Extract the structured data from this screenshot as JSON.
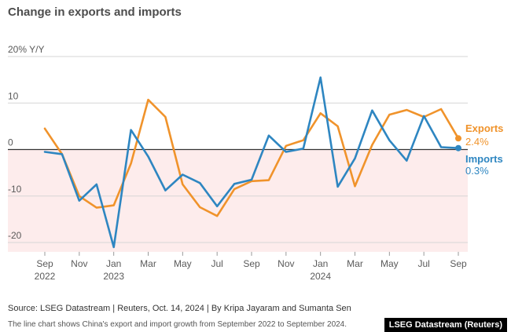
{
  "title": "Change in exports and imports",
  "source": "Source: LSEG Datastream | Reuters, Oct. 14, 2024 | By Kripa Jayaram and Sumanta Sen",
  "description": "The line chart shows China's export and import growth from September 2022 to September 2024.",
  "brand": "LSEG Datastream (Reuters)",
  "colors": {
    "exports": "#f0932b",
    "imports": "#2e86c1",
    "negative_band": "#fdecec"
  },
  "chart_data": {
    "type": "line",
    "title": "Change in exports and imports",
    "ylabel": "% Y/Y",
    "ylim": [
      -22,
      22
    ],
    "yticks": [
      {
        "value": 20,
        "label": "20% Y/Y"
      },
      {
        "value": 10,
        "label": "10"
      },
      {
        "value": 0,
        "label": "0"
      },
      {
        "value": -10,
        "label": "-10"
      },
      {
        "value": -20,
        "label": "-20"
      }
    ],
    "x": [
      "2022-09",
      "2022-10",
      "2022-11",
      "2022-12",
      "2023-01",
      "2023-02",
      "2023-03",
      "2023-04",
      "2023-05",
      "2023-06",
      "2023-07",
      "2023-08",
      "2023-09",
      "2023-10",
      "2023-11",
      "2023-12",
      "2024-01",
      "2024-02",
      "2024-03",
      "2024-04",
      "2024-05",
      "2024-06",
      "2024-07",
      "2024-08",
      "2024-09"
    ],
    "xticks": [
      {
        "index": 0,
        "label": "Sep",
        "year": "2022"
      },
      {
        "index": 2,
        "label": "Nov"
      },
      {
        "index": 4,
        "label": "Jan",
        "year": "2023"
      },
      {
        "index": 6,
        "label": "Mar"
      },
      {
        "index": 8,
        "label": "May"
      },
      {
        "index": 10,
        "label": "Jul"
      },
      {
        "index": 12,
        "label": "Sep"
      },
      {
        "index": 14,
        "label": "Nov"
      },
      {
        "index": 16,
        "label": "Jan",
        "year": "2024"
      },
      {
        "index": 18,
        "label": "Mar"
      },
      {
        "index": 20,
        "label": "May"
      },
      {
        "index": 22,
        "label": "Jul"
      },
      {
        "index": 24,
        "label": "Sep"
      }
    ],
    "series": [
      {
        "name": "Exports",
        "last_label": "2.4%",
        "values": [
          4.5,
          -1.0,
          -10.0,
          -12.5,
          -12.0,
          -3.0,
          10.7,
          7.0,
          -7.5,
          -12.4,
          -14.3,
          -8.5,
          -6.8,
          -6.6,
          0.8,
          2.0,
          7.8,
          5.0,
          -7.9,
          1.0,
          7.5,
          8.5,
          7.0,
          8.7,
          2.4
        ]
      },
      {
        "name": "Imports",
        "last_label": "0.3%",
        "values": [
          -0.5,
          -1.0,
          -11.0,
          -7.5,
          -21.0,
          4.2,
          -1.5,
          -8.8,
          -5.4,
          -7.2,
          -12.2,
          -7.4,
          -6.5,
          3.0,
          -0.5,
          0.2,
          15.5,
          -8.0,
          -1.9,
          8.4,
          2.0,
          -2.4,
          7.2,
          0.5,
          0.3
        ]
      }
    ]
  }
}
